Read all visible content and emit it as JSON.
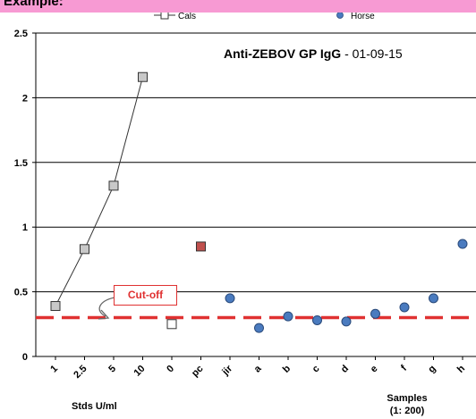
{
  "banner_text": "Example:",
  "chart_data": {
    "type": "scatter",
    "title": "Anti-ZEBOV GP IgG",
    "title_date": "01-09-15",
    "ylim": [
      0,
      2.5
    ],
    "yticks": [
      "0",
      "0.5",
      "1",
      "1.5",
      "2",
      "2.5"
    ],
    "grid": true,
    "legend_position": "top",
    "categories": [
      "1",
      "2.5",
      "5",
      "10",
      "0",
      "pc",
      "jir",
      "a",
      "b",
      "c",
      "d",
      "e",
      "f",
      "g",
      "h"
    ],
    "series": [
      {
        "name": "Cals",
        "style": "line-square",
        "color": "#c8c8c8",
        "points": [
          {
            "x": "1",
            "y": 0.39
          },
          {
            "x": "2.5",
            "y": 0.83
          },
          {
            "x": "5",
            "y": 1.32
          },
          {
            "x": "10",
            "y": 2.16
          }
        ]
      },
      {
        "name": "Horse",
        "style": "circle",
        "color": "#4a7bbf",
        "points": [
          {
            "x": "jir",
            "y": 0.45
          },
          {
            "x": "a",
            "y": 0.22
          },
          {
            "x": "b",
            "y": 0.31
          },
          {
            "x": "c",
            "y": 0.28
          },
          {
            "x": "d",
            "y": 0.27
          },
          {
            "x": "e",
            "y": 0.33
          },
          {
            "x": "f",
            "y": 0.38
          },
          {
            "x": "g",
            "y": 0.45
          },
          {
            "x": "h",
            "y": 0.87
          }
        ]
      }
    ],
    "extra_points": [
      {
        "x": "0",
        "y": 0.25,
        "shape": "square",
        "color": "#ffffff"
      },
      {
        "x": "pc",
        "y": 0.85,
        "shape": "square",
        "color": "#c0504d"
      }
    ],
    "cutoff": {
      "y": 0.3,
      "label": "Cut-off",
      "color": "#e03131"
    },
    "group_labels": {
      "stds": "Stds U/ml",
      "samples_line1": "Samples",
      "samples_line2": "(1: 200)"
    }
  }
}
